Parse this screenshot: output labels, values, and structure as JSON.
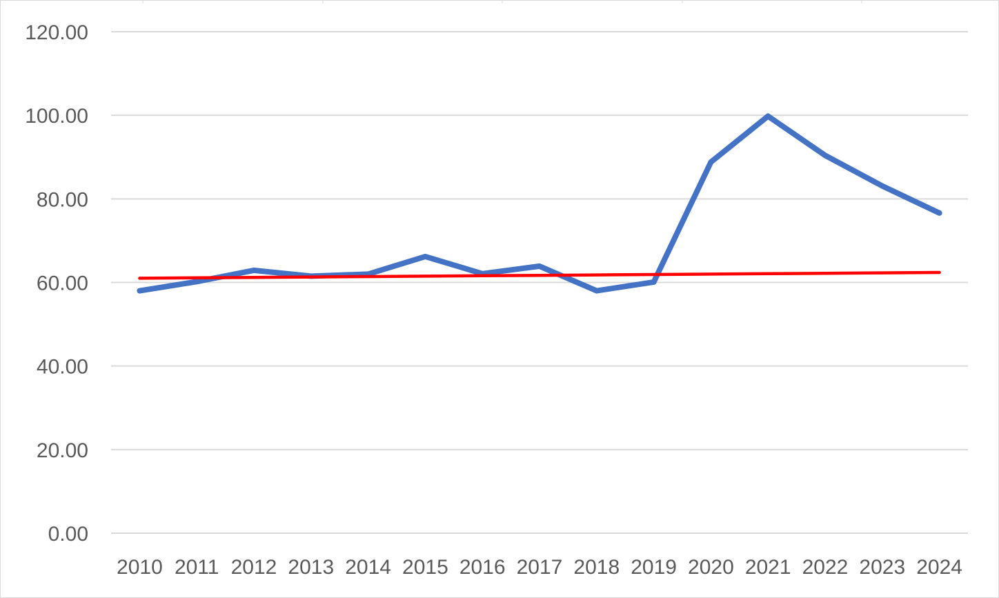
{
  "chart_data": {
    "type": "line",
    "title": "",
    "xlabel": "",
    "ylabel": "",
    "categories": [
      "2010",
      "2011",
      "2012",
      "2013",
      "2014",
      "2015",
      "2016",
      "2017",
      "2018",
      "2019",
      "2020",
      "2021",
      "2022",
      "2023",
      "2024"
    ],
    "y_ticks": [
      "0.00",
      "20.00",
      "40.00",
      "60.00",
      "80.00",
      "100.00",
      "120.00"
    ],
    "ylim": [
      0,
      120
    ],
    "grid": true,
    "series": [
      {
        "color": "#4472C4",
        "values": [
          58.0,
          60.2,
          62.9,
          61.5,
          62.0,
          66.2,
          62.1,
          63.9,
          58.0,
          60.1,
          88.8,
          99.8,
          90.4,
          83.1,
          76.6
        ]
      },
      {
        "color": "#FF0000",
        "values": [
          61.0,
          61.1,
          61.2,
          61.3,
          61.4,
          61.5,
          61.6,
          61.7,
          61.8,
          61.9,
          62.0,
          62.1,
          62.2,
          62.3,
          62.4
        ]
      }
    ]
  }
}
